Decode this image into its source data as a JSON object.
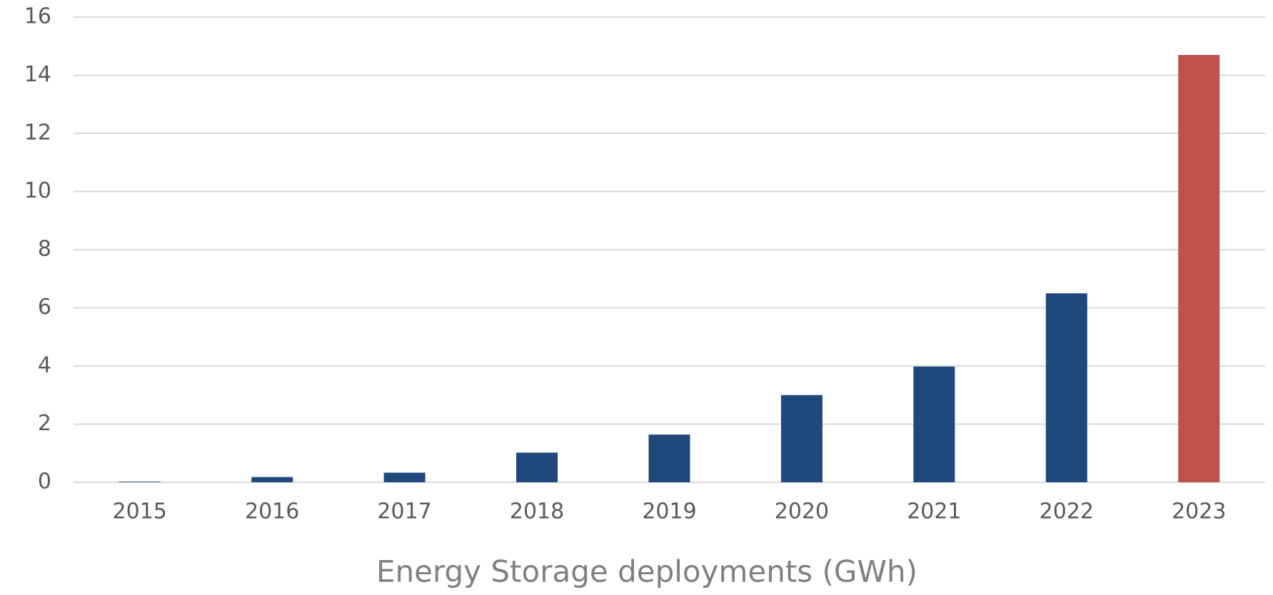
{
  "chart_data": {
    "type": "bar",
    "title": "Energy Storage deployments (GWh)",
    "categories": [
      "2015",
      "2016",
      "2017",
      "2018",
      "2019",
      "2020",
      "2021",
      "2022",
      "2023"
    ],
    "values": [
      0.02,
      0.18,
      0.33,
      1.02,
      1.64,
      3.0,
      3.98,
      6.5,
      14.7
    ],
    "colors": [
      "#1f497d",
      "#1f497d",
      "#1f497d",
      "#1f497d",
      "#1f497d",
      "#1f497d",
      "#1f497d",
      "#1f497d",
      "#c0504d"
    ],
    "ylim": [
      0,
      16
    ],
    "yticks": [
      0,
      2,
      4,
      6,
      8,
      10,
      12,
      14,
      16
    ],
    "grid": true
  }
}
